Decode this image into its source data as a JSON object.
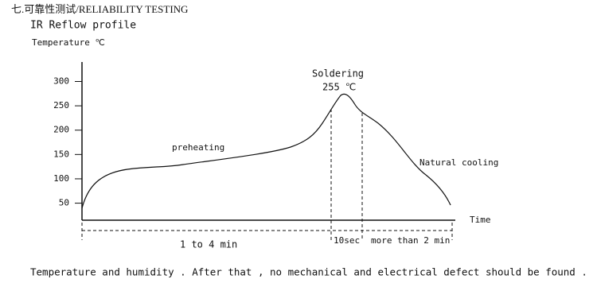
{
  "header": {
    "title": "七.可靠性测试/RELIABILITY TESTING",
    "subtitle": "IR Reflow profile"
  },
  "figure": {
    "y_label": "Temperature ℃",
    "x_label": "Time",
    "ylim": [
      15,
      340
    ],
    "yticks": [
      50,
      100,
      150,
      200,
      250,
      300
    ],
    "annotations": {
      "peak_title": "Soldering",
      "peak_value": "255 ℃",
      "preheat": "preheating",
      "cooling": "Natural cooling"
    },
    "durations": {
      "preheat": "1 to 4 min",
      "peak": "10sec",
      "cooling": "more than 2 min"
    }
  },
  "footer": "Temperature and humidity . After that , no mechanical and electrical defect should be found ."
}
